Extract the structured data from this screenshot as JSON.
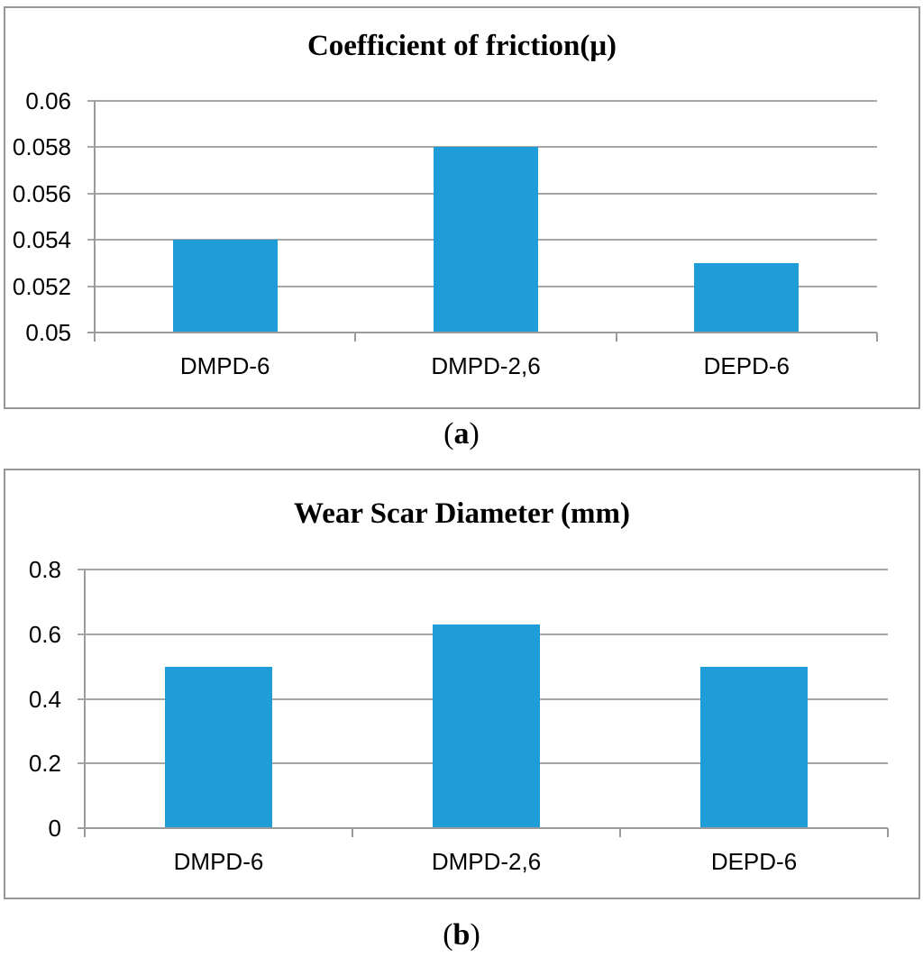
{
  "colors": {
    "bar_fill": "#1F9DD8",
    "gridline": "#A6A6A6",
    "axis_line": "#9B9B9B",
    "panel_border": "#969696",
    "text": "#000000",
    "background": "#FFFFFF"
  },
  "captions": {
    "a": {
      "open": "(",
      "letter": "a",
      "close": ")"
    },
    "b": {
      "open": "(",
      "letter": "b",
      "close": ")"
    }
  },
  "chart_data": [
    {
      "type": "bar",
      "panel": "a",
      "title": "Coefficient of friction(μ)",
      "categories": [
        "DMPD-6",
        "DMPD-2,6",
        "DEPD-6"
      ],
      "values": [
        0.054,
        0.058,
        0.053
      ],
      "ylim": [
        0.05,
        0.06
      ],
      "yticks": [
        0.05,
        0.052,
        0.054,
        0.056,
        0.058,
        0.06
      ],
      "ytick_labels": [
        "0.05",
        "0.052",
        "0.054",
        "0.056",
        "0.058",
        "0.06"
      ],
      "xlabel": "",
      "ylabel": "",
      "grid": true,
      "legend": false,
      "bar_color": "#1F9DD8"
    },
    {
      "type": "bar",
      "panel": "b",
      "title": "Wear Scar Diameter (mm)",
      "categories": [
        "DMPD-6",
        "DMPD-2,6",
        "DEPD-6"
      ],
      "values": [
        0.5,
        0.63,
        0.5
      ],
      "ylim": [
        0,
        0.8
      ],
      "yticks": [
        0,
        0.2,
        0.4,
        0.6,
        0.8
      ],
      "ytick_labels": [
        "0",
        "0.2",
        "0.4",
        "0.6",
        "0.8"
      ],
      "xlabel": "",
      "ylabel": "",
      "grid": true,
      "legend": false,
      "bar_color": "#1F9DD8"
    }
  ]
}
